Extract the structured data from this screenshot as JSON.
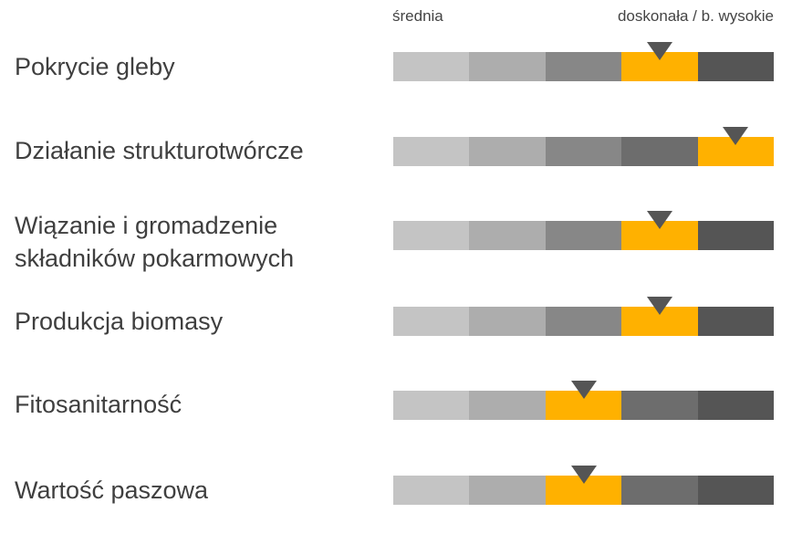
{
  "scale": {
    "low_label": "średnia",
    "high_label": "doskonała / b. wysokie"
  },
  "colors": {
    "segments": [
      "#c4c4c4",
      "#adadad",
      "#878787",
      "#6d6d6d",
      "#555555"
    ],
    "highlight": "#ffb100",
    "marker": "#555555"
  },
  "chart_data": {
    "type": "table",
    "levels": 5,
    "rows": [
      {
        "label": "Pokrycie gleby",
        "level": 4
      },
      {
        "label": "Działanie strukturotwórcze",
        "level": 5
      },
      {
        "label": "Wiązanie i gromadzenie składników pokarmowych",
        "level": 4
      },
      {
        "label": "Produkcja biomasy",
        "level": 4
      },
      {
        "label": "Fitosanitarność",
        "level": 3
      },
      {
        "label": "Wartość paszowa",
        "level": 3
      }
    ]
  }
}
